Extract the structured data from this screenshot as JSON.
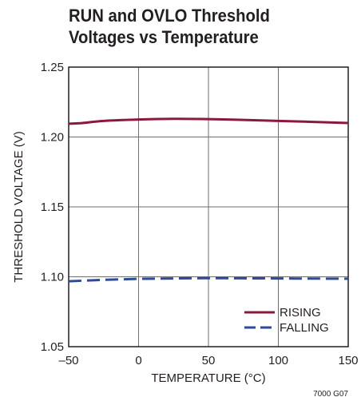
{
  "chart_data": {
    "type": "line",
    "title_lines": [
      "RUN and OVLO Threshold",
      "Voltages vs Temperature"
    ],
    "xlabel": "TEMPERATURE (°C)",
    "ylabel": "THRESHOLD VOLTAGE (V)",
    "xlim": [
      -50,
      150
    ],
    "ylim": [
      1.05,
      1.25
    ],
    "xticks": [
      -50,
      0,
      50,
      100,
      150
    ],
    "xtick_labels": [
      "–50",
      "0",
      "50",
      "100",
      "150"
    ],
    "yticks": [
      1.05,
      1.1,
      1.15,
      1.2,
      1.25
    ],
    "ytick_labels": [
      "1.05",
      "1.10",
      "1.15",
      "1.20",
      "1.25"
    ],
    "grid": true,
    "legend_position": "bottom-right",
    "series": [
      {
        "name": "RISING",
        "color": "#8b1a3a",
        "style": "solid",
        "x": [
          -50,
          -40,
          -25,
          0,
          25,
          50,
          75,
          100,
          125,
          150
        ],
        "y": [
          1.2095,
          1.21,
          1.2115,
          1.2125,
          1.213,
          1.2128,
          1.2122,
          1.2115,
          1.2108,
          1.21
        ]
      },
      {
        "name": "FALLING",
        "color": "#2e4a9a",
        "style": "dashed",
        "x": [
          -50,
          -25,
          0,
          25,
          50,
          75,
          100,
          125,
          150
        ],
        "y": [
          1.0968,
          1.0978,
          1.0985,
          1.0988,
          1.099,
          1.0989,
          1.0988,
          1.0987,
          1.0986
        ]
      }
    ],
    "figure_code": "7000 G07"
  }
}
